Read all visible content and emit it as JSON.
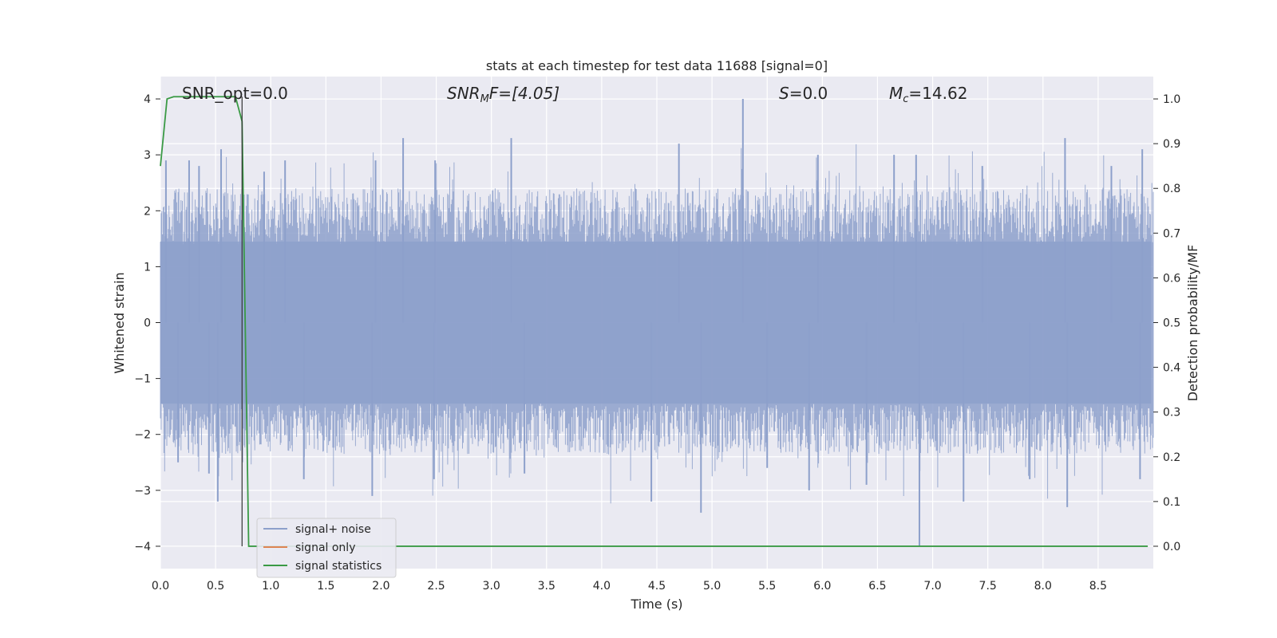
{
  "chart_data": {
    "type": "line",
    "title": "stats at each timestep for test data 11688 [signal=0]",
    "xlabel": "Time (s)",
    "ylabel": "Whitened strain",
    "y2label": "Detection probability/MF",
    "xlim": [
      0.0,
      9.0
    ],
    "ylim": [
      -4.4,
      4.4
    ],
    "y2lim": [
      -0.05,
      1.05
    ],
    "xticks": [
      0.0,
      0.5,
      1.0,
      1.5,
      2.0,
      2.5,
      3.0,
      3.5,
      4.0,
      4.5,
      5.0,
      5.5,
      6.0,
      6.5,
      7.0,
      7.5,
      8.0,
      8.5
    ],
    "xtick_labels": [
      "0.0",
      "0.5",
      "1.0",
      "1.5",
      "2.0",
      "2.5",
      "3.0",
      "3.5",
      "4.0",
      "4.5",
      "5.0",
      "5.5",
      "6.0",
      "6.5",
      "7.0",
      "7.5",
      "8.0",
      "8.5"
    ],
    "yticks": [
      -4,
      -3,
      -2,
      -1,
      0,
      1,
      2,
      3,
      4
    ],
    "ytick_labels": [
      "−4",
      "−3",
      "−2",
      "−1",
      "0",
      "1",
      "2",
      "3",
      "4"
    ],
    "y2ticks": [
      0.0,
      0.1,
      0.2,
      0.3,
      0.4,
      0.5,
      0.6,
      0.7,
      0.8,
      0.9,
      1.0
    ],
    "y2tick_labels": [
      "0.0",
      "0.1",
      "0.2",
      "0.3",
      "0.4",
      "0.5",
      "0.6",
      "0.7",
      "0.8",
      "0.9",
      "1.0"
    ],
    "grid": true,
    "legend_placement": "lower-left",
    "annotations": {
      "snr_opt": "SNR_opt=0.0",
      "snr_mf_base": "SNR",
      "snr_mf_sub": "M",
      "snr_mf_tail": "F=[4.05]",
      "s_label": "S",
      "s_tail": "=0.0",
      "mc_base": "M",
      "mc_sub": "c",
      "mc_tail": "=14.62"
    },
    "series": [
      {
        "name": "signal+ noise",
        "color": "#8da0cb",
        "axis": "left",
        "description": "whitened strain noise, dense band between about -1.6 and 1.6 with spikes",
        "peaks_x": [
          0.05,
          0.26,
          0.35,
          0.55,
          0.94,
          1.13,
          1.95,
          2.2,
          2.49,
          3.18,
          4.7,
          5.28,
          5.96,
          6.65,
          6.85,
          7.45,
          8.2,
          8.62,
          8.9
        ],
        "peaks_y": [
          2.9,
          2.9,
          2.8,
          3.1,
          2.7,
          2.9,
          2.9,
          3.3,
          2.9,
          3.3,
          3.2,
          4.0,
          3.0,
          3.0,
          3.0,
          2.8,
          3.3,
          2.8,
          3.1
        ],
        "troughs_x": [
          0.16,
          0.44,
          0.52,
          1.3,
          1.92,
          2.48,
          3.3,
          4.45,
          4.9,
          5.5,
          5.88,
          6.4,
          6.88,
          7.28,
          7.88,
          8.22,
          8.88
        ],
        "troughs_y": [
          -2.5,
          -2.7,
          -3.2,
          -2.8,
          -3.1,
          -2.8,
          -2.7,
          -3.2,
          -3.4,
          -2.6,
          -3.0,
          -2.9,
          -4.0,
          -3.2,
          -2.8,
          -3.3,
          -2.8
        ]
      },
      {
        "name": "signal only",
        "color": "#dd8452",
        "axis": "left",
        "x": [
          0.0,
          9.0
        ],
        "y": [
          0.0,
          0.0
        ]
      },
      {
        "name": "signal statistics",
        "color": "#3a9a45",
        "axis": "right",
        "x": [
          0.0,
          0.06,
          0.12,
          0.2,
          0.4,
          0.68,
          0.74,
          0.8,
          0.9,
          8.95
        ],
        "y": [
          0.85,
          1.0,
          1.005,
          1.005,
          1.005,
          1.005,
          0.95,
          0.0,
          0.0,
          0.0
        ]
      }
    ],
    "vline_x": 0.74
  }
}
